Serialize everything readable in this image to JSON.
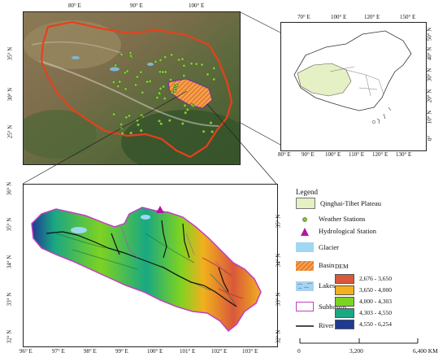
{
  "top_left_map": {
    "x_ticks": [
      "80° E",
      "90° E",
      "100° E"
    ],
    "y_ticks": [
      "35° N",
      "30° N",
      "25° N"
    ]
  },
  "inset_map": {
    "x_ticks_top": [
      "70° E",
      "100° E",
      "120° E",
      "150° E"
    ],
    "x_ticks_bottom": [
      "80° E",
      "90° E",
      "100° E",
      "110° E",
      "120° E",
      "130° E"
    ],
    "y_ticks_right": [
      "50° N",
      "40° N",
      "30° N",
      "20° N",
      "10° N",
      "0°"
    ]
  },
  "basin_map": {
    "x_ticks": [
      "96° E",
      "97° E",
      "98° E",
      "99° E",
      "100° E",
      "101° E",
      "102° E",
      "103° E"
    ],
    "y_ticks_left": [
      "36° N",
      "35° N",
      "34° N",
      "33° N",
      "32° N"
    ],
    "y_ticks_right": [
      "35° N",
      "34° N",
      "33° N",
      "32° N"
    ]
  },
  "legend": {
    "title": "Legend",
    "items": {
      "plateau": "Qinghai-Tibet Plateau",
      "weather": "Weather Stations",
      "hydro": "Hydrological Station",
      "glacier": "Glacier",
      "basin": "Basin",
      "lakes": "Lakes",
      "subbasins": "Subbasins",
      "river": "River"
    },
    "dem": {
      "title": "DEM",
      "classes": [
        {
          "label": "2,676 - 3,650",
          "color": "#d9583b"
        },
        {
          "label": "3,650 - 4,000",
          "color": "#f2b01e"
        },
        {
          "label": "4,000 - 4,303",
          "color": "#7ed321"
        },
        {
          "label": "4,303 - 4,550",
          "color": "#19a882"
        },
        {
          "label": "4,550 - 6,254",
          "color": "#1f3a93"
        }
      ]
    }
  },
  "scale_bar": {
    "labels": [
      "0",
      "3,200",
      "6,400 KM"
    ]
  },
  "colors": {
    "plateau_fill": "#e5f0c4",
    "boundary_red": "#e8401c",
    "station_green": "#8cc63f",
    "hydro_magenta": "#b5179e",
    "glacier_blue": "#9fd8f0",
    "basin_orange": "#f28c28",
    "subbasin_purple": "#c03fc0"
  }
}
